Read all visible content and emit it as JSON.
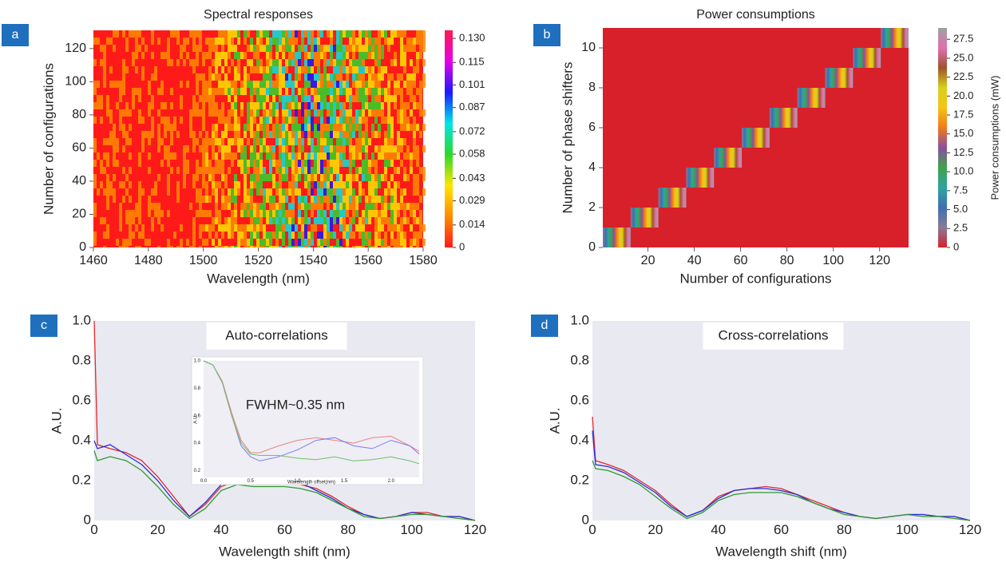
{
  "chart_data": [
    {
      "panel": "a",
      "type": "heatmap",
      "title": "Spectral responses",
      "x_label": "Wavelength (nm)",
      "y_label": "Number of configurations",
      "xlim": [
        1460,
        1580
      ],
      "xticks": [
        1460,
        1480,
        1500,
        1520,
        1540,
        1560,
        1580
      ],
      "ylim": [
        0,
        131
      ],
      "yticks": [
        0,
        20,
        40,
        60,
        80,
        100,
        120
      ],
      "clim": [
        0,
        0.135
      ],
      "cticks": [
        0,
        0.014,
        0.029,
        0.043,
        0.058,
        0.072,
        0.087,
        0.101,
        0.115,
        {
          "value": 0.13,
          "label": "0.130"
        }
      ],
      "colormap": [
        "#ff1a1a",
        "#ff8c00",
        "#ffe600",
        "#2bd92b",
        "#00e6e6",
        "#1a1aff",
        "#e600e6",
        "#ff1a4d"
      ]
    },
    {
      "panel": "b",
      "type": "blocks",
      "title": "Power consumptions",
      "x_label": "Number of configurations",
      "y_label": "Number of phase shifters",
      "colorbar_label": "Power consumptions (mW)",
      "xlim": [
        0.5,
        132.5
      ],
      "xticks": [
        20,
        40,
        60,
        80,
        100,
        120
      ],
      "ylim": [
        0,
        11
      ],
      "yticks": [
        0,
        2,
        4,
        6,
        8,
        10
      ],
      "clim": [
        0,
        29
      ],
      "cticks": [
        0,
        2.5,
        {
          "value": 5,
          "label": "5.0"
        },
        7.5,
        {
          "value": 10,
          "label": "10.0"
        },
        12.5,
        {
          "value": 15,
          "label": "15.0"
        },
        17.5,
        {
          "value": 20,
          "label": "20.0"
        },
        22.5,
        {
          "value": 25,
          "label": "25.0"
        },
        27.5
      ],
      "colormap": [
        "#d8202a",
        "#8a7a9a",
        "#3d6fb0",
        "#2fa3a0",
        "#3fa34a",
        "#8a4fa0",
        "#f07a1a",
        "#f6c21a",
        "#d6d21a",
        "#a0522d",
        "#e070b0",
        "#a0a0a0"
      ],
      "cells": [
        {
          "y": 0,
          "x": [
            1,
            12
          ]
        },
        {
          "y": 1,
          "x": [
            13,
            24
          ]
        },
        {
          "y": 2,
          "x": [
            25,
            36
          ]
        },
        {
          "y": 3,
          "x": [
            37,
            48
          ]
        },
        {
          "y": 4,
          "x": [
            49,
            60
          ]
        },
        {
          "y": 5,
          "x": [
            61,
            72
          ]
        },
        {
          "y": 6,
          "x": [
            73,
            84
          ]
        },
        {
          "y": 7,
          "x": [
            85,
            96
          ]
        },
        {
          "y": 8,
          "x": [
            97,
            108
          ]
        },
        {
          "y": 9,
          "x": [
            109,
            120
          ]
        },
        {
          "y": 10,
          "x": [
            121,
            132
          ]
        }
      ]
    },
    {
      "panel": "c",
      "type": "line",
      "annotation": "Auto-correlations",
      "x_label": "Wavelength shift (nm)",
      "y_label": "A.U.",
      "xlim": [
        0,
        120
      ],
      "xticks": [
        0,
        20,
        40,
        60,
        80,
        100,
        120
      ],
      "ylim": [
        0,
        1
      ],
      "yticks": [
        0,
        0.2,
        0.4,
        0.6,
        0.8,
        {
          "value": 1,
          "label": "1.0"
        }
      ],
      "x": [
        0,
        1,
        5,
        10,
        15,
        20,
        25,
        30,
        35,
        40,
        45,
        50,
        55,
        60,
        65,
        70,
        75,
        80,
        85,
        90,
        95,
        100,
        105,
        110,
        115,
        120
      ],
      "series": [
        {
          "color": "#e8262a",
          "values": [
            1.0,
            0.38,
            0.36,
            0.34,
            0.3,
            0.22,
            0.12,
            0.02,
            0.08,
            0.17,
            0.2,
            0.2,
            0.2,
            0.19,
            0.18,
            0.16,
            0.12,
            0.07,
            0.03,
            0.01,
            0.02,
            0.04,
            0.04,
            0.02,
            0.02,
            0
          ]
        },
        {
          "color": "#2430d8",
          "values": [
            0.4,
            0.36,
            0.38,
            0.33,
            0.28,
            0.2,
            0.1,
            0.02,
            0.09,
            0.18,
            0.21,
            0.2,
            0.19,
            0.2,
            0.19,
            0.15,
            0.11,
            0.06,
            0.03,
            0.01,
            0.02,
            0.04,
            0.03,
            0.02,
            0.02,
            0
          ]
        },
        {
          "color": "#2f9a2f",
          "values": [
            0.35,
            0.3,
            0.32,
            0.3,
            0.25,
            0.17,
            0.08,
            0.01,
            0.06,
            0.15,
            0.18,
            0.17,
            0.17,
            0.17,
            0.16,
            0.14,
            0.1,
            0.06,
            0.02,
            0.01,
            0.02,
            0.03,
            0.03,
            0.02,
            0.01,
            0
          ]
        }
      ],
      "inset": {
        "type": "line",
        "annotation": "FWHM~0.35 nm",
        "x_label": "Wavelength offset(nm)",
        "y_label": "A.U.",
        "xlim": [
          0,
          2.3
        ],
        "xticks": [
          {
            "value": 0,
            "label": "0.0"
          },
          0.5,
          {
            "value": 1,
            "label": "1.0"
          },
          1.5,
          {
            "value": 2,
            "label": "2.0"
          }
        ],
        "ylim": [
          0.15,
          1.0
        ],
        "yticks": [
          0.2,
          0.4,
          0.6,
          0.8,
          {
            "value": 1,
            "label": "1.0"
          }
        ],
        "x": [
          0,
          0.1,
          0.2,
          0.3,
          0.4,
          0.5,
          0.6,
          0.8,
          1.0,
          1.2,
          1.4,
          1.6,
          1.8,
          2.0,
          2.2,
          2.3
        ],
        "series": [
          {
            "color": "#f08080",
            "values": [
              1,
              0.97,
              0.85,
              0.62,
              0.42,
              0.33,
              0.33,
              0.38,
              0.42,
              0.44,
              0.42,
              0.4,
              0.44,
              0.45,
              0.38,
              0.34
            ]
          },
          {
            "color": "#7b7bf0",
            "values": [
              1,
              0.97,
              0.84,
              0.6,
              0.38,
              0.3,
              0.27,
              0.3,
              0.35,
              0.42,
              0.44,
              0.38,
              0.36,
              0.42,
              0.38,
              0.32
            ]
          },
          {
            "color": "#6fbf6f",
            "values": [
              1,
              0.97,
              0.84,
              0.6,
              0.4,
              0.32,
              0.31,
              0.31,
              0.29,
              0.28,
              0.3,
              0.27,
              0.28,
              0.3,
              0.27,
              0.25
            ]
          }
        ]
      }
    },
    {
      "panel": "d",
      "type": "line",
      "annotation": "Cross-correlations",
      "x_label": "Wavelength shift (nm)",
      "y_label": "A.U.",
      "xlim": [
        0,
        120
      ],
      "xticks": [
        0,
        20,
        40,
        60,
        80,
        100,
        120
      ],
      "ylim": [
        0,
        1
      ],
      "yticks": [
        0,
        0.2,
        0.4,
        0.6,
        0.8,
        {
          "value": 1,
          "label": "1.0"
        }
      ],
      "x": [
        0,
        1,
        5,
        10,
        15,
        20,
        25,
        30,
        35,
        40,
        45,
        50,
        55,
        60,
        65,
        70,
        75,
        80,
        85,
        90,
        95,
        100,
        105,
        110,
        115,
        120
      ],
      "series": [
        {
          "color": "#e8262a",
          "values": [
            0.52,
            0.3,
            0.28,
            0.25,
            0.2,
            0.15,
            0.08,
            0.02,
            0.05,
            0.12,
            0.15,
            0.16,
            0.17,
            0.16,
            0.13,
            0.1,
            0.07,
            0.04,
            0.02,
            0.01,
            0.02,
            0.03,
            0.03,
            0.02,
            0.02,
            0
          ]
        },
        {
          "color": "#2430d8",
          "values": [
            0.45,
            0.28,
            0.27,
            0.24,
            0.19,
            0.14,
            0.07,
            0.02,
            0.05,
            0.11,
            0.15,
            0.16,
            0.16,
            0.15,
            0.13,
            0.09,
            0.06,
            0.04,
            0.02,
            0.01,
            0.02,
            0.03,
            0.03,
            0.02,
            0.02,
            0
          ]
        },
        {
          "color": "#2f9a2f",
          "values": [
            0.3,
            0.26,
            0.25,
            0.22,
            0.18,
            0.12,
            0.06,
            0.01,
            0.04,
            0.1,
            0.13,
            0.14,
            0.14,
            0.14,
            0.12,
            0.09,
            0.06,
            0.03,
            0.02,
            0.01,
            0.02,
            0.03,
            0.02,
            0.02,
            0.01,
            0
          ]
        }
      ]
    }
  ]
}
